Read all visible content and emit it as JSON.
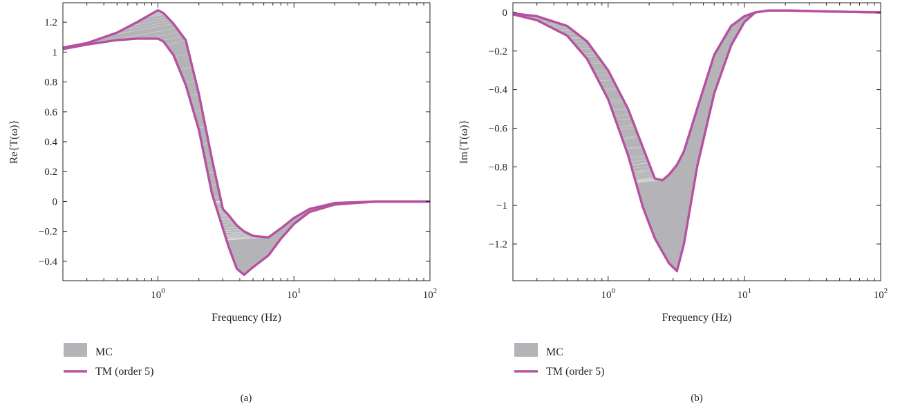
{
  "colors": {
    "mc_band": "#b4b4b8",
    "tm_line": "#b5519f",
    "axis": "#222222"
  },
  "chart_data": [
    {
      "type": "area",
      "panel_label": "(a)",
      "xlabel": "Frequency (Hz)",
      "ylabel": "Re{T(ω)}",
      "xscale": "log",
      "xlim": [
        0.2,
        100
      ],
      "ylim": [
        -0.53,
        1.33
      ],
      "xticks": [
        {
          "value": 1,
          "label": "10",
          "exp": "0"
        },
        {
          "value": 10,
          "label": "10",
          "exp": "1"
        },
        {
          "value": 100,
          "label": "10",
          "exp": "2"
        }
      ],
      "yticks": [
        1.2,
        1,
        0.8,
        0.6,
        0.4,
        0.2,
        0,
        -0.2,
        -0.4
      ],
      "ytick_labels": [
        "1.2",
        "1",
        "0.8",
        "0.6",
        "0.4",
        "0.2",
        "0",
        "−0.2",
        "−0.4"
      ],
      "legend": {
        "placement": "bottom-left, below axes",
        "entries": [
          "MC",
          "TM (order 5)"
        ]
      },
      "series": [
        {
          "name": "MC",
          "kind": "band",
          "x": [
            0.2,
            0.3,
            0.5,
            0.7,
            1.0,
            1.1,
            1.3,
            1.6,
            2.0,
            2.5,
            3.0,
            3.3,
            3.8,
            4.3,
            5.0,
            6.5,
            8.0,
            10,
            13,
            20,
            40,
            100
          ],
          "upper": [
            1.03,
            1.06,
            1.13,
            1.2,
            1.27,
            1.25,
            1.19,
            1.08,
            0.72,
            0.28,
            -0.05,
            -0.09,
            -0.16,
            -0.2,
            -0.23,
            -0.24,
            -0.18,
            -0.11,
            -0.05,
            -0.01,
            0.0,
            0.0
          ],
          "lower": [
            1.02,
            1.05,
            1.08,
            1.09,
            1.09,
            1.07,
            0.98,
            0.78,
            0.48,
            0.05,
            -0.18,
            -0.3,
            -0.45,
            -0.49,
            -0.44,
            -0.36,
            -0.25,
            -0.15,
            -0.07,
            -0.02,
            0.0,
            0.0
          ]
        },
        {
          "name": "TM (order 5)",
          "kind": "envelope-upper",
          "x": [
            0.2,
            0.3,
            0.5,
            0.7,
            1.0,
            1.1,
            1.3,
            1.6,
            2.0,
            2.5,
            3.0,
            3.3,
            3.8,
            4.3,
            5.0,
            6.5,
            8.0,
            10,
            13,
            20,
            40,
            100
          ],
          "y": [
            1.03,
            1.06,
            1.13,
            1.2,
            1.28,
            1.26,
            1.19,
            1.08,
            0.72,
            0.28,
            -0.05,
            -0.09,
            -0.16,
            -0.2,
            -0.23,
            -0.24,
            -0.18,
            -0.11,
            -0.05,
            -0.01,
            0.0,
            0.0
          ]
        },
        {
          "name": "TM (order 5)",
          "kind": "envelope-lower",
          "x": [
            0.2,
            0.3,
            0.5,
            0.7,
            1.0,
            1.1,
            1.3,
            1.6,
            2.0,
            2.5,
            3.0,
            3.3,
            3.8,
            4.3,
            5.0,
            6.5,
            8.0,
            10,
            13,
            20,
            40,
            100
          ],
          "y": [
            1.02,
            1.05,
            1.08,
            1.09,
            1.09,
            1.07,
            0.98,
            0.78,
            0.48,
            0.05,
            -0.18,
            -0.3,
            -0.45,
            -0.49,
            -0.44,
            -0.36,
            -0.25,
            -0.15,
            -0.07,
            -0.02,
            0.0,
            0.0
          ]
        }
      ]
    },
    {
      "type": "area",
      "panel_label": "(b)",
      "xlabel": "Frequency (Hz)",
      "ylabel": "Im{T(ω)}",
      "xscale": "log",
      "xlim": [
        0.2,
        100
      ],
      "ylim": [
        -1.39,
        0.05
      ],
      "xticks": [
        {
          "value": 1,
          "label": "10",
          "exp": "0"
        },
        {
          "value": 10,
          "label": "10",
          "exp": "1"
        },
        {
          "value": 100,
          "label": "10",
          "exp": "2"
        }
      ],
      "yticks": [
        0,
        -0.2,
        -0.4,
        -0.6,
        -0.8,
        -1,
        -1.2
      ],
      "ytick_labels": [
        "0",
        "−0.2",
        "−0.4",
        "−0.6",
        "−0.8",
        "−1",
        "−1.2"
      ],
      "legend": {
        "placement": "bottom-left, below axes",
        "entries": [
          "MC",
          "TM (order 5)"
        ]
      },
      "series": [
        {
          "name": "MC",
          "kind": "band",
          "x": [
            0.2,
            0.3,
            0.5,
            0.7,
            1.0,
            1.4,
            1.8,
            2.2,
            2.5,
            2.8,
            3.2,
            3.6,
            4.5,
            6.0,
            8.0,
            10,
            12,
            15,
            20,
            40,
            100
          ],
          "upper": [
            -0.005,
            -0.02,
            -0.07,
            -0.15,
            -0.3,
            -0.5,
            -0.7,
            -0.86,
            -0.87,
            -0.84,
            -0.79,
            -0.72,
            -0.5,
            -0.22,
            -0.07,
            -0.02,
            0.0,
            0.01,
            0.01,
            0.005,
            0.0
          ],
          "lower": [
            -0.01,
            -0.04,
            -0.12,
            -0.24,
            -0.45,
            -0.74,
            -1.01,
            -1.17,
            -1.24,
            -1.3,
            -1.34,
            -1.2,
            -0.8,
            -0.42,
            -0.17,
            -0.05,
            0.0,
            0.01,
            0.01,
            0.005,
            0.0
          ]
        },
        {
          "name": "TM (order 5)",
          "kind": "envelope-upper",
          "x": [
            0.2,
            0.3,
            0.5,
            0.7,
            1.0,
            1.4,
            1.8,
            2.2,
            2.5,
            2.8,
            3.2,
            3.6,
            4.5,
            6.0,
            8.0,
            10,
            12,
            15,
            20,
            40,
            100
          ],
          "y": [
            -0.005,
            -0.02,
            -0.07,
            -0.15,
            -0.3,
            -0.5,
            -0.7,
            -0.86,
            -0.87,
            -0.84,
            -0.79,
            -0.72,
            -0.5,
            -0.22,
            -0.07,
            -0.02,
            0.0,
            0.01,
            0.01,
            0.005,
            0.0
          ]
        },
        {
          "name": "TM (order 5)",
          "kind": "envelope-lower",
          "x": [
            0.2,
            0.3,
            0.5,
            0.7,
            1.0,
            1.4,
            1.8,
            2.2,
            2.5,
            2.8,
            3.2,
            3.6,
            4.5,
            6.0,
            8.0,
            10,
            12,
            15,
            20,
            40,
            100
          ],
          "y": [
            -0.01,
            -0.04,
            -0.12,
            -0.24,
            -0.45,
            -0.74,
            -1.01,
            -1.17,
            -1.24,
            -1.3,
            -1.34,
            -1.2,
            -0.8,
            -0.42,
            -0.17,
            -0.05,
            0.0,
            0.01,
            0.01,
            0.005,
            0.0
          ]
        }
      ]
    }
  ]
}
